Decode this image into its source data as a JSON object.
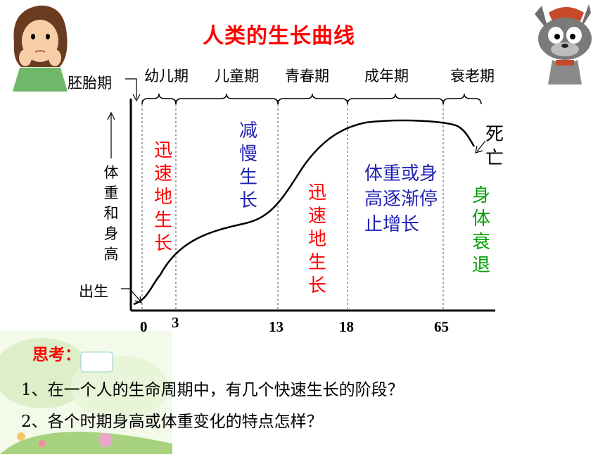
{
  "title": "人类的生长曲线",
  "stages": {
    "embryo": "胚胎期",
    "infancy": "幼儿期",
    "childhood": "儿童期",
    "adolescence": "青春期",
    "adulthood": "成年期",
    "old_age": "衰老期"
  },
  "y_axis_label": "体重和身高",
  "x_ticks": [
    "0",
    "3",
    "13",
    "18",
    "65"
  ],
  "annotations": {
    "birth": "出生",
    "death": "死亡",
    "phase1": "迅速地生长",
    "phase2": "减慢生长",
    "phase3": "迅速地生长",
    "phase4": "体重或身高逐渐停止增长",
    "phase5": "身体衰退"
  },
  "questions": {
    "heading": "思考：",
    "q1": "1、在一个人的生命周期中，有几个快速生长的阶段？",
    "q2": "2、各个时期身高或体重变化的特点怎样？"
  },
  "colors": {
    "title": "#ff0000",
    "fast_growth": "#ff0000",
    "slow_growth": "#1f1fb3",
    "decline": "#00a000",
    "curve": "#000000"
  }
}
